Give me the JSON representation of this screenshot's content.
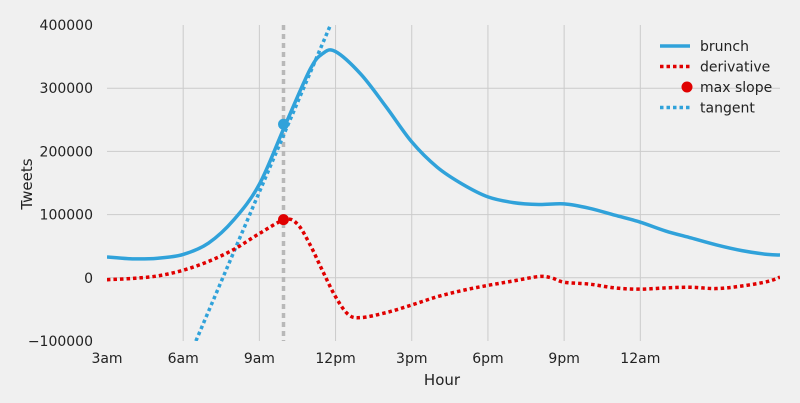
{
  "chart_data": {
    "type": "line",
    "xlabel": "Hour",
    "ylabel": "Tweets",
    "ylim": [
      -100000,
      400000
    ],
    "xlim": [
      3,
      29.5
    ],
    "grid": true,
    "legend_position": "top-right",
    "x_tick_labels": [
      "3am",
      "6am",
      "9am",
      "12pm",
      "3pm",
      "6pm",
      "9pm",
      "12am"
    ],
    "x_tick_values": [
      3,
      6,
      9,
      12,
      15,
      18,
      21,
      24
    ],
    "y_tick_labels": [
      "−100000",
      "0",
      "100000",
      "200000",
      "300000",
      "400000"
    ],
    "y_tick_values": [
      -100000,
      0,
      100000,
      200000,
      300000,
      400000
    ],
    "vline_x": 9.95,
    "colors": {
      "brunch": "#30a2da",
      "derivative": "#e00000",
      "vline": "#b8b8b8",
      "grid": "#cbcbcb"
    },
    "series": [
      {
        "name": "brunch",
        "style": "solid",
        "x": [
          3,
          4,
          5,
          6,
          7,
          8,
          9,
          10,
          11,
          11.5,
          12,
          13,
          14,
          15,
          16,
          17,
          18,
          19,
          20,
          21,
          22,
          23,
          24,
          25,
          26,
          27,
          28,
          29,
          29.5
        ],
        "y": [
          33000,
          30000,
          31000,
          37000,
          55000,
          92000,
          148000,
          240000,
          330000,
          355000,
          358000,
          322000,
          270000,
          215000,
          175000,
          148000,
          128000,
          119000,
          116000,
          117000,
          110000,
          99000,
          88000,
          74000,
          63000,
          52000,
          43000,
          37000,
          36000
        ]
      },
      {
        "name": "derivative",
        "style": "dotted",
        "x": [
          3,
          4,
          5,
          6,
          7,
          8,
          9,
          10,
          10.5,
          11,
          11.5,
          12,
          12.5,
          13,
          14,
          15,
          16,
          17,
          18,
          19,
          20,
          20.5,
          21,
          22,
          23,
          24,
          25,
          26,
          27,
          28,
          29,
          29.5
        ],
        "y": [
          -3000,
          -1000,
          3000,
          12000,
          26000,
          45000,
          70000,
          92000,
          85000,
          52000,
          10000,
          -30000,
          -58000,
          -63000,
          -55000,
          -43000,
          -30000,
          -20000,
          -12000,
          -5000,
          2000,
          0,
          -7000,
          -10000,
          -16000,
          -18000,
          -16000,
          -15000,
          -17000,
          -13000,
          -6000,
          1000
        ]
      },
      {
        "name": "max slope",
        "style": "marker",
        "x": [
          9.95,
          9.95
        ],
        "y": [
          243000,
          92000
        ]
      },
      {
        "name": "tangent",
        "style": "dotted",
        "x": [
          6.5,
          11.8
        ],
        "y": [
          -100000,
          400000
        ]
      }
    ]
  }
}
